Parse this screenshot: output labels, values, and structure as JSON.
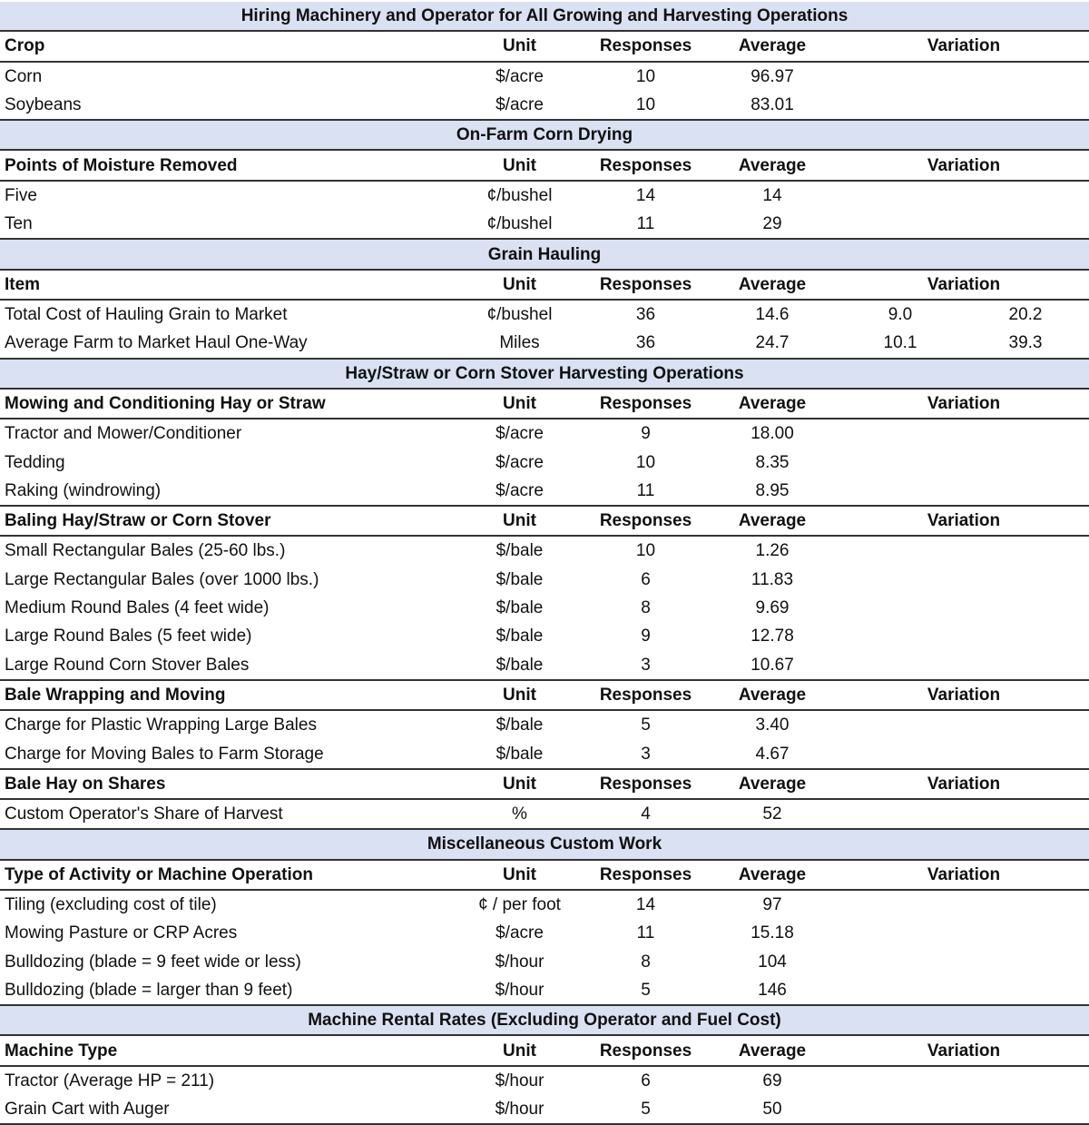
{
  "columns": {
    "unit": "Unit",
    "responses": "Responses",
    "average": "Average",
    "variation": "Variation"
  },
  "sections": [
    {
      "title": "Hiring Machinery and Operator for All Growing and Harvesting Operations",
      "groups": [
        {
          "header": "Crop",
          "rows": [
            [
              "Corn",
              "$/acre",
              "10",
              "96.97",
              "",
              ""
            ],
            [
              "Soybeans",
              "$/acre",
              "10",
              "83.01",
              "",
              ""
            ]
          ]
        }
      ]
    },
    {
      "title": "On-Farm Corn Drying",
      "groups": [
        {
          "header": "Points of Moisture Removed",
          "rows": [
            [
              "Five",
              "¢/bushel",
              "14",
              "14",
              "",
              ""
            ],
            [
              "Ten",
              "¢/bushel",
              "11",
              "29",
              "",
              ""
            ]
          ]
        }
      ]
    },
    {
      "title": "Grain Hauling",
      "groups": [
        {
          "header": "Item",
          "rows": [
            [
              "Total Cost of Hauling Grain to Market",
              "¢/bushel",
              "36",
              "14.6",
              "9.0",
              "20.2"
            ],
            [
              "Average Farm to Market Haul One-Way",
              "Miles",
              "36",
              "24.7",
              "10.1",
              "39.3"
            ]
          ]
        }
      ]
    },
    {
      "title": "Hay/Straw or Corn Stover Harvesting Operations",
      "groups": [
        {
          "header": "Mowing and Conditioning Hay or Straw",
          "rows": [
            [
              "Tractor and Mower/Conditioner",
              "$/acre",
              "9",
              "18.00",
              "",
              ""
            ],
            [
              "Tedding",
              "$/acre",
              "10",
              "8.35",
              "",
              ""
            ],
            [
              "Raking (windrowing)",
              "$/acre",
              "11",
              "8.95",
              "",
              ""
            ]
          ]
        },
        {
          "header": "Baling Hay/Straw or Corn Stover",
          "rows": [
            [
              "Small Rectangular Bales (25-60 lbs.)",
              "$/bale",
              "10",
              "1.26",
              "",
              ""
            ],
            [
              "Large Rectangular Bales (over 1000 lbs.)",
              "$/bale",
              "6",
              "11.83",
              "",
              ""
            ],
            [
              "Medium Round Bales (4 feet wide)",
              "$/bale",
              "8",
              "9.69",
              "",
              ""
            ],
            [
              "Large Round Bales (5 feet wide)",
              "$/bale",
              "9",
              "12.78",
              "",
              ""
            ],
            [
              "Large Round Corn Stover Bales",
              "$/bale",
              "3",
              "10.67",
              "",
              ""
            ]
          ]
        },
        {
          "header": "Bale Wrapping and Moving",
          "rows": [
            [
              "Charge for Plastic Wrapping Large Bales",
              "$/bale",
              "5",
              "3.40",
              "",
              ""
            ],
            [
              "Charge for Moving Bales to Farm Storage",
              "$/bale",
              "3",
              "4.67",
              "",
              ""
            ]
          ]
        },
        {
          "header": "Bale Hay on Shares",
          "rows": [
            [
              "Custom Operator's Share of Harvest",
              "%",
              "4",
              "52",
              "",
              ""
            ]
          ]
        }
      ]
    },
    {
      "title": "Miscellaneous Custom Work",
      "groups": [
        {
          "header": "Type of Activity or Machine Operation",
          "rows": [
            [
              "Tiling (excluding cost of tile)",
              "¢ / per foot",
              "14",
              "97",
              "",
              ""
            ],
            [
              "Mowing Pasture or CRP Acres",
              "$/acre",
              "11",
              "15.18",
              "",
              ""
            ],
            [
              "Bulldozing (blade = 9 feet wide or less)",
              "$/hour",
              "8",
              "104",
              "",
              ""
            ],
            [
              "Bulldozing (blade = larger than 9 feet)",
              "$/hour",
              "5",
              "146",
              "",
              ""
            ]
          ]
        }
      ]
    },
    {
      "title": "Machine Rental Rates (Excluding Operator and Fuel Cost)",
      "groups": [
        {
          "header": "Machine Type",
          "rows": [
            [
              "Tractor (Average HP = 211)",
              "$/hour",
              "6",
              "69",
              "",
              ""
            ],
            [
              "Grain Cart with Auger",
              "$/hour",
              "5",
              "50",
              "",
              ""
            ]
          ]
        }
      ]
    }
  ]
}
